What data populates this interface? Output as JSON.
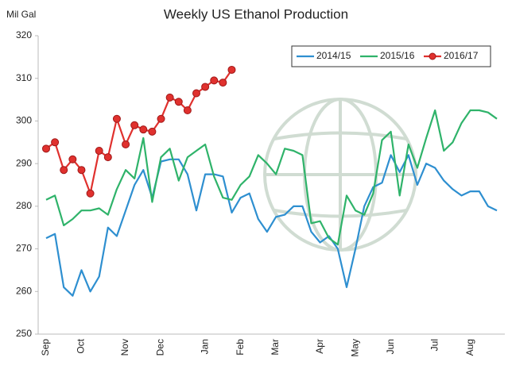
{
  "chart_data": {
    "type": "line",
    "title": "Weekly US Ethanol Production",
    "y_label": "Mil Gal",
    "categories": [
      "Sep",
      null,
      null,
      null,
      "Oct",
      null,
      null,
      null,
      null,
      "Nov",
      null,
      null,
      null,
      "Dec",
      null,
      null,
      null,
      null,
      "Jan",
      null,
      null,
      null,
      "Feb",
      null,
      null,
      null,
      "Mar",
      null,
      null,
      null,
      null,
      "Apr",
      null,
      null,
      null,
      "May",
      null,
      null,
      null,
      "Jun",
      null,
      null,
      null,
      null,
      "Jul",
      null,
      null,
      null,
      "Aug",
      null,
      null,
      null
    ],
    "series": [
      {
        "name": "2014/15",
        "color": "#2e8fd0",
        "values": [
          272.5,
          273.5,
          261,
          259,
          265,
          260,
          263.5,
          275,
          273,
          279,
          285,
          288.5,
          282,
          290.5,
          291,
          291,
          287.5,
          279,
          287.5,
          287.5,
          287,
          278.5,
          282,
          283,
          277,
          274,
          277.5,
          278,
          280,
          280,
          274,
          271.5,
          273,
          270,
          261,
          270,
          280,
          284.5,
          285.5,
          292,
          288,
          292,
          285,
          290,
          289,
          286,
          284,
          282.5,
          283.5,
          283.5,
          280,
          279
        ]
      },
      {
        "name": "2015/16",
        "color": "#2fb36a",
        "values": [
          281.5,
          282.5,
          275.5,
          277,
          279,
          279,
          279.5,
          278,
          284,
          288.5,
          286.5,
          296,
          281,
          291.5,
          293.5,
          286,
          291.5,
          293,
          294.5,
          287,
          282,
          281.5,
          285,
          287,
          292,
          290,
          287.5,
          293.5,
          293,
          292,
          276,
          276.5,
          272.5,
          271,
          282.5,
          279,
          278,
          283,
          295.5,
          297.5,
          282.5,
          294.5,
          289,
          296,
          302.5,
          293,
          295,
          299.5,
          302.5,
          302.5,
          302,
          300.5
        ]
      },
      {
        "name": "2016/17",
        "color": "#e0312e",
        "marker": true,
        "values": [
          293.5,
          295,
          288.5,
          291,
          288.5,
          283,
          293,
          291.5,
          300.5,
          294.5,
          299,
          298,
          297.5,
          300.5,
          305.5,
          304.5,
          302.5,
          306.5,
          308,
          309.5,
          309,
          312,
          null,
          null,
          null,
          null,
          null,
          null,
          null,
          null,
          null,
          null,
          null,
          null,
          null,
          null,
          null,
          null,
          null,
          null,
          null,
          null,
          null,
          null,
          null,
          null,
          null,
          null,
          null,
          null,
          null,
          null
        ]
      }
    ],
    "ylim": [
      250,
      320
    ],
    "yticks": [
      250,
      260,
      270,
      280,
      290,
      300,
      310,
      320
    ],
    "grid": false,
    "legend": "top-right"
  }
}
